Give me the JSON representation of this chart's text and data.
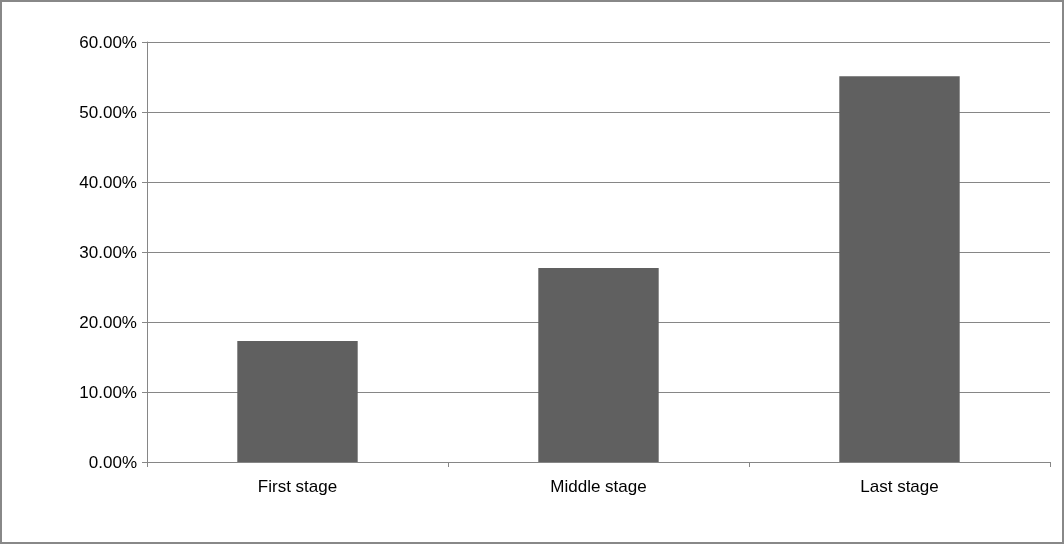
{
  "chart_data": {
    "type": "bar",
    "categories": [
      "First stage",
      "Middle stage",
      "Last stage"
    ],
    "values": [
      17.3,
      27.7,
      55.1
    ],
    "color": "#606060",
    "ylim": [
      0,
      60
    ],
    "yticks": [
      {
        "value": 0,
        "label": "0.00%"
      },
      {
        "value": 10,
        "label": "10.00%"
      },
      {
        "value": 20,
        "label": "20.00%"
      },
      {
        "value": 30,
        "label": "30.00%"
      },
      {
        "value": 40,
        "label": "40.00%"
      },
      {
        "value": 50,
        "label": "50.00%"
      },
      {
        "value": 60,
        "label": "60.00%"
      }
    ],
    "grid": "y"
  }
}
